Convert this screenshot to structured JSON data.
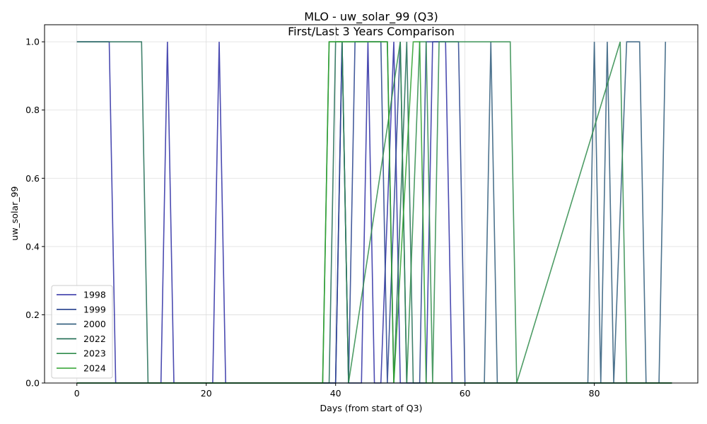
{
  "chart_data": {
    "type": "line",
    "title": "MLO - uw_solar_99 (Q3)",
    "subtitle": "First/Last 3 Years Comparison",
    "xlabel": "Days (from start of Q3)",
    "ylabel": "uw_solar_99",
    "xlim": [
      -5,
      96
    ],
    "ylim": [
      0,
      1.05
    ],
    "xticks": [
      0,
      20,
      40,
      60,
      80
    ],
    "yticks": [
      0.0,
      0.2,
      0.4,
      0.6,
      0.8,
      1.0
    ],
    "xtick_labels": [
      "0",
      "20",
      "40",
      "60",
      "80"
    ],
    "ytick_labels": [
      "0.0",
      "0.2",
      "0.4",
      "0.6",
      "0.8",
      "1.0"
    ],
    "grid": true,
    "legend_position": "lower-left",
    "series": [
      {
        "name": "1998",
        "color": "#2b2ba3",
        "x": [
          0,
          5,
          6,
          13,
          14,
          15,
          21,
          22,
          23,
          39,
          40,
          41,
          42,
          44,
          45,
          46,
          47,
          49,
          50,
          54,
          55,
          57,
          58,
          92
        ],
        "y": [
          1,
          1,
          0,
          0,
          1,
          0,
          0,
          1,
          0,
          0,
          0,
          1,
          0,
          0,
          1,
          0,
          0,
          1,
          0,
          0,
          1,
          1,
          0,
          0
        ]
      },
      {
        "name": "1999",
        "color": "#24408c",
        "x": [
          0,
          40,
          41,
          42,
          43,
          47,
          48,
          50,
          51,
          53,
          54,
          59,
          60,
          92
        ],
        "y": [
          0,
          0,
          1,
          0,
          1,
          1,
          0,
          1,
          0,
          0,
          1,
          1,
          0,
          0
        ]
      },
      {
        "name": "2000",
        "color": "#2e5a7a",
        "x": [
          0,
          63,
          64,
          65,
          79,
          80,
          81,
          82,
          83,
          85,
          87,
          88,
          90,
          91
        ],
        "y": [
          0,
          0,
          1,
          0,
          0,
          1,
          0,
          1,
          0,
          1,
          1,
          0,
          0,
          1
        ]
      },
      {
        "name": "2022",
        "color": "#1f6b52",
        "x": [
          0,
          10,
          11,
          39,
          40,
          48,
          49,
          51,
          52,
          92
        ],
        "y": [
          1,
          1,
          0,
          0,
          1,
          1,
          0,
          1,
          0,
          0
        ]
      },
      {
        "name": "2023",
        "color": "#2e8b4a",
        "x": [
          0,
          38,
          39,
          41,
          42,
          50,
          51,
          53,
          54,
          55,
          56,
          67,
          68,
          84,
          85,
          86,
          92
        ],
        "y": [
          0,
          0,
          1,
          1,
          0,
          1,
          0,
          1,
          1,
          0,
          1,
          1,
          0,
          1,
          0,
          0,
          0
        ]
      },
      {
        "name": "2024",
        "color": "#2ca02c",
        "x": [
          0,
          38,
          39,
          48,
          49,
          52,
          53,
          54,
          55,
          56,
          92
        ],
        "y": [
          0,
          0,
          1,
          1,
          0,
          1,
          1,
          0,
          0,
          0,
          0
        ]
      }
    ]
  }
}
